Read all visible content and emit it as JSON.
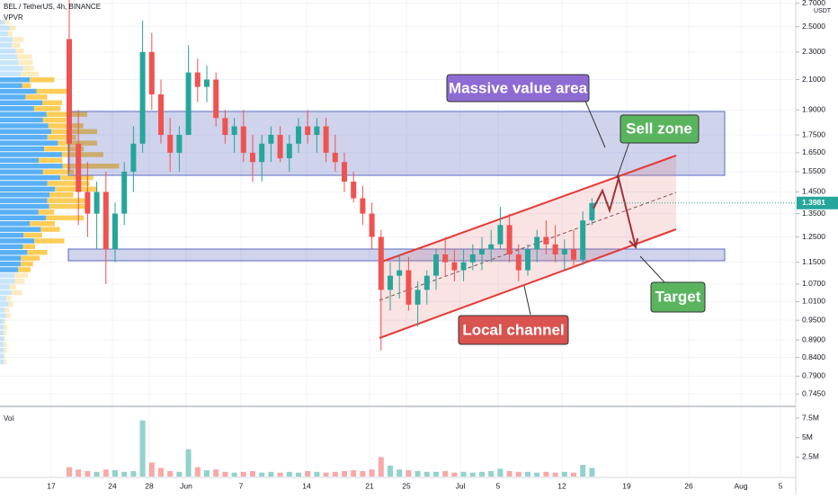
{
  "chart_data": {
    "type": "candlestick",
    "title": "BEL / TetherUS, 4h, BINANCE",
    "indicator": "VPVR",
    "currency": "USDT",
    "log_scale": true,
    "grid": true,
    "colors": {
      "up": "#26a69a",
      "down": "#ef5350"
    },
    "ylim": [
      0.715,
      2.73
    ],
    "yticks": [
      {
        "value": 2.7,
        "label": "2.7000"
      },
      {
        "value": 2.5,
        "label": "2.5000"
      },
      {
        "value": 2.3,
        "label": "2.3000"
      },
      {
        "value": 2.1,
        "label": "2.1000"
      },
      {
        "value": 1.9,
        "label": "1.9000"
      },
      {
        "value": 1.75,
        "label": "1.7500"
      },
      {
        "value": 1.65,
        "label": "1.6500"
      },
      {
        "value": 1.55,
        "label": "1.5500"
      },
      {
        "value": 1.45,
        "label": "1.4500"
      },
      {
        "value": 1.35,
        "label": "1.3500"
      },
      {
        "value": 1.25,
        "label": "1.2500"
      },
      {
        "value": 1.15,
        "label": "1.1500"
      },
      {
        "value": 1.07,
        "label": "1.0700"
      },
      {
        "value": 1.01,
        "label": "1.0100"
      },
      {
        "value": 0.95,
        "label": "0.9500"
      },
      {
        "value": 0.89,
        "label": "0.8900"
      },
      {
        "value": 0.84,
        "label": "0.8400"
      },
      {
        "value": 0.79,
        "label": "0.7900"
      },
      {
        "value": 0.745,
        "label": "0.7450"
      }
    ],
    "last_price": {
      "value": 1.3981,
      "label": "1.3981"
    },
    "x_labels": [
      "17",
      "24",
      "28",
      "Jun",
      "7",
      "14",
      "21",
      "25",
      "Jul",
      "5",
      "12",
      "19",
      "26",
      "Aug",
      "5"
    ],
    "open": [
      2.4,
      1.7,
      1.45,
      1.35,
      1.45,
      1.2,
      1.35,
      1.55,
      1.7,
      2.3,
      2.0,
      1.75,
      1.65,
      1.75,
      2.15,
      2.05,
      2.1,
      1.85,
      1.75,
      1.8,
      1.65,
      1.6,
      1.7,
      1.75,
      1.62,
      1.7,
      1.8,
      1.75,
      1.8,
      1.65,
      1.6,
      1.5,
      1.42,
      1.35,
      1.25,
      1.05,
      1.1,
      1.12,
      1.0,
      1.05,
      1.1,
      1.18,
      1.15,
      1.12,
      1.15,
      1.18,
      1.2,
      1.22,
      1.3,
      1.18,
      1.12,
      1.2,
      1.25,
      1.22,
      1.18,
      1.2,
      1.16,
      1.32
    ],
    "high": [
      2.73,
      1.9,
      1.6,
      1.5,
      1.55,
      1.4,
      1.6,
      1.8,
      2.55,
      2.45,
      2.1,
      1.85,
      1.8,
      2.35,
      2.25,
      2.2,
      2.15,
      1.9,
      1.85,
      1.9,
      1.75,
      1.75,
      1.8,
      1.8,
      1.75,
      1.85,
      1.9,
      1.85,
      1.85,
      1.75,
      1.65,
      1.55,
      1.48,
      1.4,
      1.28,
      1.15,
      1.18,
      1.17,
      1.08,
      1.12,
      1.2,
      1.25,
      1.2,
      1.2,
      1.22,
      1.25,
      1.28,
      1.38,
      1.35,
      1.22,
      1.22,
      1.28,
      1.32,
      1.3,
      1.24,
      1.28,
      1.36,
      1.42
    ],
    "low": [
      1.55,
      1.3,
      1.25,
      1.2,
      1.07,
      1.15,
      1.3,
      1.45,
      1.65,
      1.9,
      1.7,
      1.55,
      1.55,
      1.75,
      1.95,
      1.95,
      1.8,
      1.7,
      1.65,
      1.6,
      1.5,
      1.5,
      1.6,
      1.6,
      1.55,
      1.65,
      1.7,
      1.65,
      1.6,
      1.55,
      1.45,
      1.4,
      1.3,
      1.2,
      0.86,
      0.98,
      1.02,
      0.98,
      0.93,
      1.0,
      1.05,
      1.1,
      1.08,
      1.08,
      1.12,
      1.12,
      1.15,
      1.2,
      1.15,
      1.08,
      1.1,
      1.15,
      1.18,
      1.15,
      1.12,
      1.13,
      1.14,
      1.3
    ],
    "close": [
      1.7,
      1.45,
      1.35,
      1.45,
      1.2,
      1.35,
      1.55,
      1.7,
      2.3,
      2.0,
      1.75,
      1.65,
      1.75,
      2.15,
      2.05,
      2.1,
      1.85,
      1.75,
      1.8,
      1.65,
      1.6,
      1.7,
      1.75,
      1.62,
      1.7,
      1.8,
      1.75,
      1.8,
      1.65,
      1.6,
      1.5,
      1.42,
      1.35,
      1.25,
      1.05,
      1.1,
      1.12,
      1.0,
      1.05,
      1.1,
      1.18,
      1.15,
      1.12,
      1.15,
      1.18,
      1.2,
      1.22,
      1.3,
      1.18,
      1.12,
      1.2,
      1.25,
      1.22,
      1.18,
      1.2,
      1.16,
      1.32,
      1.3981
    ],
    "volume": {
      "label": "Vol",
      "ylim": [
        0,
        9
      ],
      "yticks": [
        {
          "value": 2.5,
          "label": "2.5M"
        },
        {
          "value": 5,
          "label": "5M"
        },
        {
          "value": 7.5,
          "label": "7.5M"
        }
      ],
      "values": [
        1.2,
        0.9,
        0.7,
        0.6,
        0.9,
        0.8,
        0.6,
        0.7,
        7.2,
        1.8,
        1.1,
        0.7,
        0.6,
        3.5,
        1.2,
        0.8,
        0.9,
        0.6,
        0.5,
        0.6,
        0.7,
        0.5,
        0.6,
        0.5,
        0.6,
        0.5,
        0.7,
        0.6,
        0.5,
        0.6,
        0.7,
        0.8,
        0.7,
        0.9,
        2.5,
        1.4,
        0.9,
        0.8,
        0.7,
        0.6,
        0.6,
        0.7,
        0.5,
        0.6,
        0.5,
        0.6,
        0.7,
        1.0,
        0.7,
        0.6,
        0.6,
        0.5,
        0.6,
        0.5,
        0.6,
        0.5,
        1.5,
        1.1
      ]
    },
    "annotations": [
      "Massive value area",
      "Sell zone",
      "Target",
      "Local channel"
    ]
  }
}
